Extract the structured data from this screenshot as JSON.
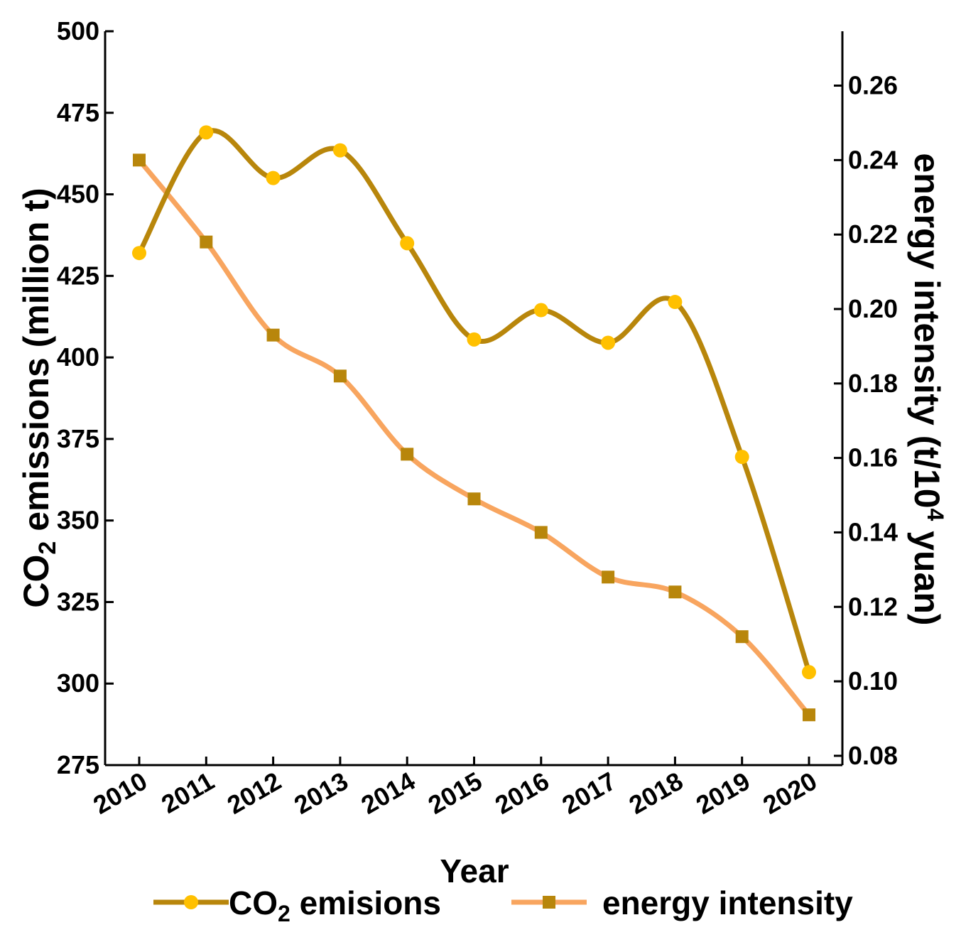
{
  "chart_data": {
    "type": "line",
    "x": [
      2010,
      2011,
      2012,
      2013,
      2014,
      2015,
      2016,
      2017,
      2018,
      2019,
      2020
    ],
    "categories": [
      "2010",
      "2011",
      "2012",
      "2013",
      "2014",
      "2015",
      "2016",
      "2017",
      "2018",
      "2019",
      "2020"
    ],
    "xlabel": "Year",
    "ylabel": {
      "prefix": "CO",
      "sub": "2",
      "suffix": " emissions (million t)"
    },
    "y2label": {
      "prefix": "energy intensity (t/10",
      "sup": "4",
      "suffix": " yuan)"
    },
    "ylim": [
      275,
      500
    ],
    "y2lim": [
      0.0775,
      0.2746
    ],
    "yticks": [
      "275",
      "300",
      "325",
      "350",
      "375",
      "400",
      "425",
      "450",
      "475",
      "500"
    ],
    "y2ticks": [
      "0.08",
      "0.10",
      "0.12",
      "0.14",
      "0.16",
      "0.18",
      "0.20",
      "0.22",
      "0.24",
      "0.26"
    ],
    "series": [
      {
        "name": "CO2 emisions",
        "legend": {
          "prefix": "CO",
          "sub": "2",
          "suffix": " emisions"
        },
        "axis": "left",
        "color": "#B8860B",
        "marker": "circle",
        "marker_color": "#FFC000",
        "values": [
          432,
          469,
          455,
          463.5,
          435,
          405.5,
          414.5,
          404.5,
          417,
          369.5,
          303.5
        ]
      },
      {
        "name": "energy intensity",
        "legend": {
          "prefix": "energy intensity",
          "sub": "",
          "suffix": ""
        },
        "axis": "right",
        "color": "#F8A55F",
        "marker": "square",
        "marker_color": "#B8860B",
        "values": [
          0.24,
          0.218,
          0.193,
          0.182,
          0.161,
          0.149,
          0.14,
          0.128,
          0.124,
          0.112,
          0.091
        ]
      }
    ],
    "legend_position": "bottom"
  }
}
